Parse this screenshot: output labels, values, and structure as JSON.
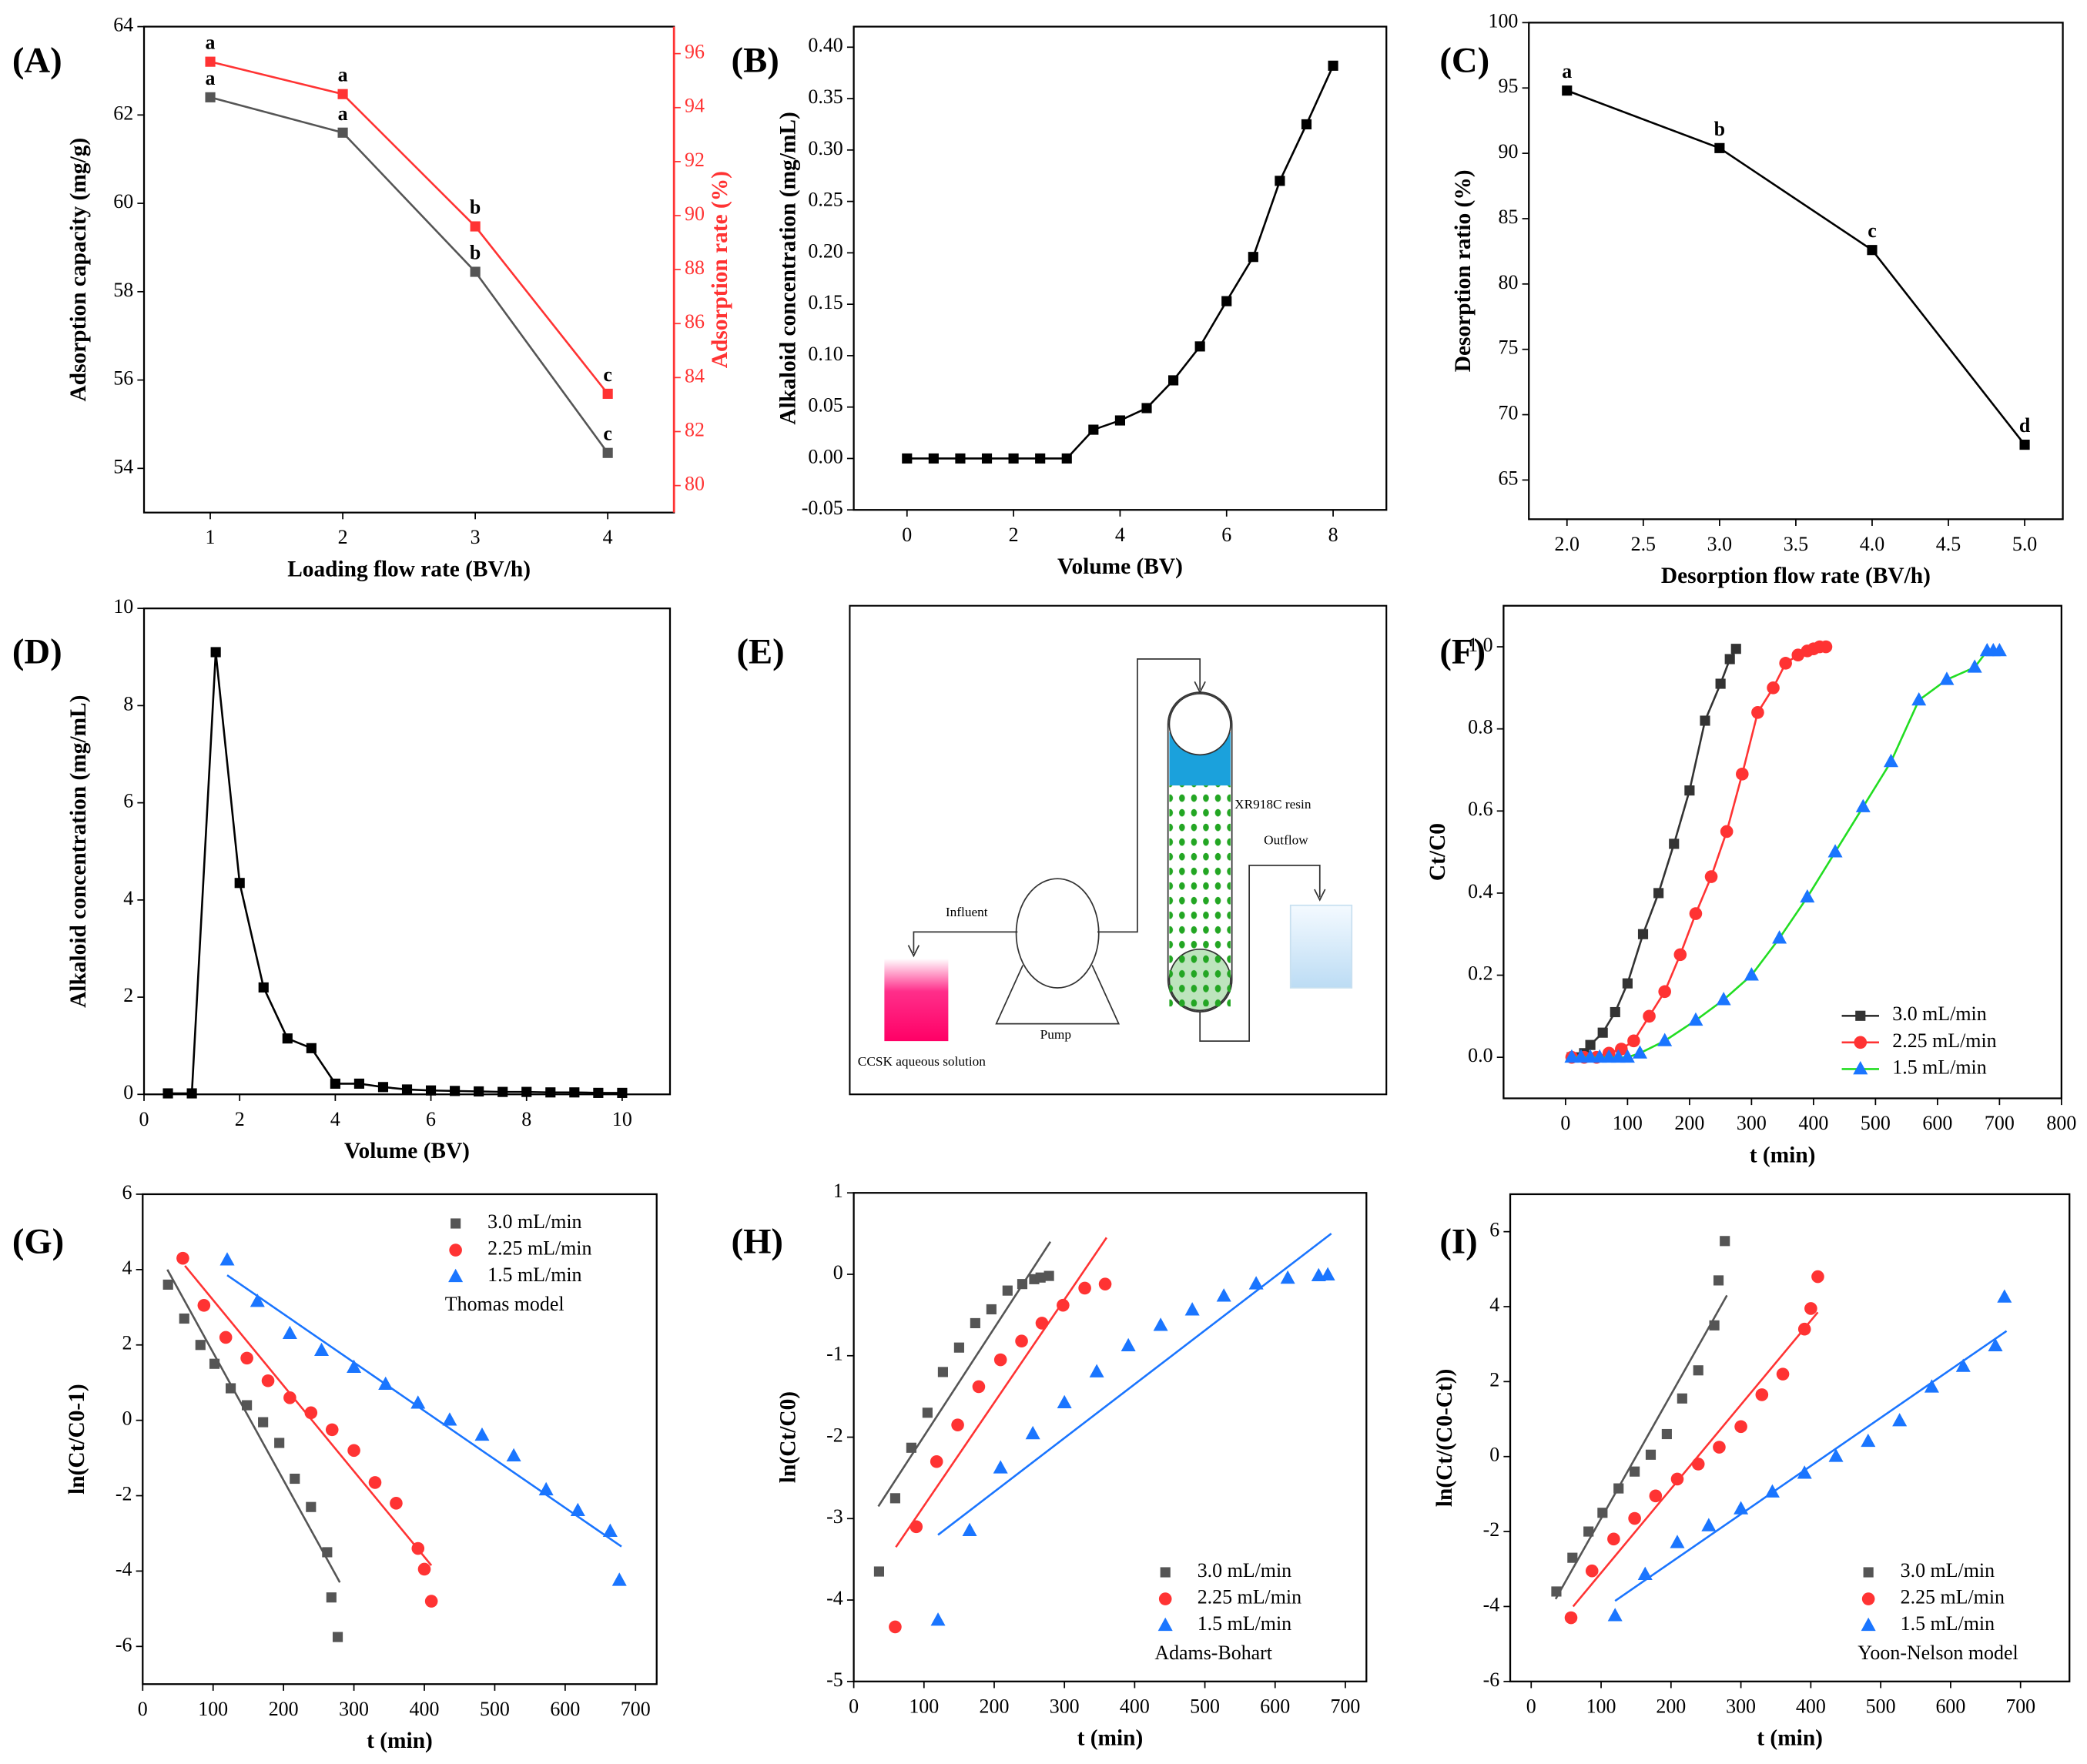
{
  "chart_data": [
    {
      "type": "line",
      "panel": "(A)",
      "xlabel": "Loading flow rate (BV/h)",
      "ylabel": "Adsorption capacity (mg/g)",
      "y2label": "Adsorption rate (%)",
      "x": [
        1,
        2,
        3,
        4
      ],
      "xlim": [
        0.5,
        4.5
      ],
      "xticks": [
        1,
        2,
        3,
        4
      ],
      "ylim": [
        53,
        64
      ],
      "yticks": [
        54,
        56,
        58,
        60,
        62,
        64
      ],
      "y2lim": [
        79,
        97
      ],
      "y2ticks": [
        80,
        82,
        84,
        86,
        88,
        90,
        92,
        94,
        96
      ],
      "series": [
        {
          "name": "Adsorption capacity",
          "color": "#555555",
          "marker": "square",
          "values": [
            62.4,
            61.6,
            58.45,
            54.35
          ],
          "letters": [
            "a",
            "a",
            "b",
            "c"
          ]
        },
        {
          "name": "Adsorption rate",
          "color": "#ff3333",
          "marker": "square",
          "axis": "y2",
          "values": [
            95.7,
            94.5,
            89.6,
            83.4
          ],
          "letters": [
            "a",
            "a",
            "b",
            "c"
          ]
        }
      ]
    },
    {
      "type": "line",
      "panel": "(B)",
      "xlabel": "Volume (BV)",
      "ylabel": "Alkaloid concentration (mg/mL)",
      "x": [
        0,
        0.5,
        1,
        1.5,
        2,
        2.5,
        3,
        3.5,
        4,
        4.5,
        5,
        5.5,
        6,
        6.5,
        7,
        7.5,
        8
      ],
      "xlim": [
        -1,
        9
      ],
      "xticks": [
        0,
        2,
        4,
        6,
        8
      ],
      "ylim": [
        -0.05,
        0.42
      ],
      "yticks": [
        -0.05,
        {
          "value": 0,
          "label": "0.00"
        },
        0.05,
        {
          "value": 0.1,
          "label": "0.10"
        },
        0.15,
        {
          "value": 0.2,
          "label": "0.20"
        },
        0.25,
        {
          "value": 0.3,
          "label": "0.30"
        },
        0.35,
        {
          "value": 0.4,
          "label": "0.40"
        }
      ],
      "series": [
        {
          "name": "Alkaloid concentration",
          "color": "#000000",
          "marker": "square",
          "values": [
            0,
            0,
            0,
            0,
            0,
            0,
            0,
            0.028,
            0.037,
            0.049,
            0.076,
            0.109,
            0.153,
            0.196,
            0.27,
            0.325,
            0.382
          ]
        }
      ]
    },
    {
      "type": "line",
      "panel": "(C)",
      "xlabel": "Desorption flow rate (BV/h)",
      "ylabel": "Desorption ratio (%)",
      "x": [
        2,
        3,
        4,
        5
      ],
      "xlim": [
        1.75,
        5.25
      ],
      "xticks": [
        {
          "value": 2,
          "label": "2.0"
        },
        2.5,
        {
          "value": 3,
          "label": "3.0"
        },
        3.5,
        {
          "value": 4,
          "label": "4.0"
        },
        4.5,
        {
          "value": 5,
          "label": "5.0"
        }
      ],
      "ylim": [
        62,
        100
      ],
      "yticks": [
        65,
        70,
        75,
        80,
        85,
        90,
        95,
        100
      ],
      "series": [
        {
          "name": "Desorption ratio",
          "color": "#000000",
          "marker": "square",
          "values": [
            94.8,
            90.4,
            82.6,
            67.7
          ],
          "letters": [
            "a",
            "b",
            "c",
            "d"
          ]
        }
      ]
    },
    {
      "type": "line",
      "panel": "(D)",
      "xlabel": "Volume (BV)",
      "ylabel": "Alkaloid concentration (mg/mL)",
      "x": [
        0.5,
        1,
        1.5,
        2,
        2.5,
        3,
        3.5,
        4,
        4.5,
        5,
        5.5,
        6,
        6.5,
        7,
        7.5,
        8,
        8.5,
        9,
        9.5,
        10
      ],
      "xlim": [
        0,
        11
      ],
      "xticks": [
        0,
        2,
        4,
        6,
        8,
        10
      ],
      "ylim": [
        0,
        10
      ],
      "yticks": [
        0,
        2,
        4,
        6,
        8,
        10
      ],
      "series": [
        {
          "name": "Alkaloid concentration",
          "color": "#000000",
          "marker": "square",
          "values": [
            0.02,
            0.02,
            9.1,
            4.35,
            2.2,
            1.15,
            0.95,
            0.22,
            0.22,
            0.15,
            0.1,
            0.08,
            0.07,
            0.06,
            0.05,
            0.05,
            0.04,
            0.04,
            0.03,
            0.03
          ]
        }
      ]
    },
    {
      "type": "line",
      "panel": "(F)",
      "xlabel": "t (min)",
      "ylabel": "Ct/C0",
      "legend": "lower right",
      "xlim": [
        -100,
        800
      ],
      "xticks": [
        0,
        100,
        200,
        300,
        400,
        500,
        600,
        700,
        800
      ],
      "ylim": [
        -0.1,
        1.1
      ],
      "yticks": [
        {
          "value": 0,
          "label": "0.0"
        },
        0.2,
        0.4,
        0.6,
        0.8,
        {
          "value": 1,
          "label": "1.0"
        }
      ],
      "series": [
        {
          "name": "3.0 mL/min",
          "color": "#333333",
          "line_color": "#333333",
          "marker": "square",
          "x": [
            10,
            20,
            30,
            40,
            60,
            80,
            100,
            125,
            150,
            175,
            200,
            225,
            250,
            265,
            275
          ],
          "values": [
            0,
            0,
            0.01,
            0.03,
            0.06,
            0.11,
            0.18,
            0.3,
            0.4,
            0.52,
            0.65,
            0.82,
            0.91,
            0.97,
            0.995
          ]
        },
        {
          "name": "2.25 mL/min",
          "color": "#ff3333",
          "line_color": "#ff3333",
          "marker": "circle",
          "x": [
            10,
            30,
            50,
            70,
            90,
            110,
            135,
            160,
            185,
            210,
            235,
            260,
            285,
            310,
            335,
            355,
            375,
            390,
            400,
            410,
            420
          ],
          "values": [
            0,
            0,
            0,
            0.01,
            0.02,
            0.04,
            0.1,
            0.16,
            0.25,
            0.35,
            0.44,
            0.55,
            0.69,
            0.84,
            0.9,
            0.96,
            0.98,
            0.99,
            0.995,
            1.0,
            1.0
          ]
        },
        {
          "name": "1.5 mL/min",
          "color": "#1a75ff",
          "line_color": "#22dd22",
          "marker": "triangle",
          "x": [
            10,
            25,
            40,
            55,
            70,
            85,
            100,
            120,
            160,
            210,
            255,
            300,
            345,
            390,
            435,
            480,
            525,
            570,
            615,
            660,
            680,
            690,
            700
          ],
          "values": [
            0,
            0,
            0,
            0,
            0,
            0,
            0,
            0.01,
            0.04,
            0.09,
            0.14,
            0.2,
            0.29,
            0.39,
            0.5,
            0.61,
            0.72,
            0.87,
            0.92,
            0.95,
            0.99,
            0.99,
            0.99
          ]
        }
      ]
    },
    {
      "type": "scatter",
      "panel": "(G)",
      "xlabel": "t (min)",
      "ylabel": "ln(Ct/C0-1)",
      "legend": "upper right",
      "model_label": "Thomas model",
      "xlim": [
        0,
        730
      ],
      "xticks": [
        0,
        100,
        200,
        300,
        400,
        500,
        600,
        700
      ],
      "ylim": [
        -7,
        6
      ],
      "yticks": [
        -6,
        -4,
        -2,
        0,
        2,
        4,
        6
      ],
      "series": [
        {
          "name": "3.0 mL/min",
          "color": "#555555",
          "marker": "square",
          "x": [
            36,
            59,
            82,
            102,
            125,
            148,
            171,
            194,
            216,
            239,
            262,
            268,
            277
          ],
          "values": [
            3.6,
            2.7,
            2.0,
            1.5,
            0.85,
            0.4,
            -0.05,
            -0.6,
            -1.55,
            -2.3,
            -3.5,
            -4.7,
            -5.75
          ],
          "fit": {
            "x": [
              35,
              280
            ],
            "values": [
              4.0,
              -4.3
            ]
          }
        },
        {
          "name": "2.25 mL/min",
          "color": "#ff3333",
          "marker": "circle",
          "x": [
            57,
            87,
            118,
            148,
            178,
            209,
            239,
            269,
            300,
            330,
            360,
            391,
            400,
            410
          ],
          "values": [
            4.3,
            3.05,
            2.2,
            1.65,
            1.05,
            0.6,
            0.2,
            -0.25,
            -0.8,
            -1.65,
            -2.2,
            -3.4,
            -3.95,
            -4.8
          ],
          "fit": {
            "x": [
              60,
              410
            ],
            "values": [
              4.1,
              -3.85
            ]
          }
        },
        {
          "name": "1.5 mL/min",
          "color": "#1a75ff",
          "marker": "triangle",
          "x": [
            120,
            163,
            209,
            254,
            300,
            345,
            391,
            436,
            482,
            527,
            573,
            618,
            664,
            677
          ],
          "values": [
            4.25,
            3.15,
            2.3,
            1.85,
            1.4,
            0.95,
            0.45,
            0.0,
            -0.4,
            -0.95,
            -1.85,
            -2.4,
            -2.95,
            -4.25
          ],
          "fit": {
            "x": [
              120,
              680
            ],
            "values": [
              3.85,
              -3.35
            ]
          }
        }
      ]
    },
    {
      "type": "scatter",
      "panel": "(H)",
      "xlabel": "t (min)",
      "ylabel": "ln(Ct/C0)",
      "legend": "lower right",
      "model_label": "Adams-Bohart",
      "xlim": [
        0,
        730
      ],
      "xticks": [
        0,
        100,
        200,
        300,
        400,
        500,
        600,
        700
      ],
      "ylim": [
        -5,
        1
      ],
      "yticks": [
        -5,
        -4,
        -3,
        -2,
        -1,
        0,
        1
      ],
      "series": [
        {
          "name": "3.0 mL/min",
          "color": "#555555",
          "marker": "square",
          "x": [
            36,
            59,
            82,
            105,
            127,
            150,
            173,
            196,
            219,
            240,
            257,
            266,
            278
          ],
          "values": [
            -3.65,
            -2.75,
            -2.13,
            -1.7,
            -1.2,
            -0.9,
            -0.6,
            -0.43,
            -0.2,
            -0.12,
            -0.06,
            -0.04,
            -0.02
          ],
          "fit": {
            "x": [
              35,
              280
            ],
            "values": [
              -2.85,
              0.4
            ]
          }
        },
        {
          "name": "2.25 mL/min",
          "color": "#ff3333",
          "marker": "circle",
          "x": [
            59,
            89,
            118,
            148,
            178,
            209,
            239,
            268,
            298,
            329,
            358
          ],
          "values": [
            -4.33,
            -3.1,
            -2.3,
            -1.85,
            -1.38,
            -1.05,
            -0.82,
            -0.6,
            -0.38,
            -0.17,
            -0.12
          ],
          "fit": {
            "x": [
              60,
              360
            ],
            "values": [
              -3.35,
              0.45
            ]
          }
        },
        {
          "name": "1.5 mL/min",
          "color": "#1a75ff",
          "marker": "triangle",
          "x": [
            120,
            165,
            209,
            255,
            300,
            346,
            391,
            437,
            482,
            527,
            573,
            618,
            662,
            675
          ],
          "values": [
            -4.25,
            -3.15,
            -2.38,
            -1.96,
            -1.58,
            -1.2,
            -0.88,
            -0.63,
            -0.44,
            -0.27,
            -0.12,
            -0.05,
            -0.02,
            -0.01
          ],
          "fit": {
            "x": [
              120,
              680
            ],
            "values": [
              -3.2,
              0.5
            ]
          }
        }
      ]
    },
    {
      "type": "scatter",
      "panel": "(I)",
      "xlabel": "t (min)",
      "ylabel": "ln(Ct/(C0-Ct))",
      "legend": "lower right",
      "model_label": "Yoon-Nelson model",
      "xlim": [
        -30,
        770
      ],
      "xticks": [
        0,
        100,
        200,
        300,
        400,
        500,
        600,
        700
      ],
      "ylim": [
        -6,
        7
      ],
      "yticks": [
        -6,
        -4,
        -2,
        0,
        2,
        4,
        6
      ],
      "series": [
        {
          "name": "3.0 mL/min",
          "color": "#555555",
          "marker": "square",
          "x": [
            36,
            59,
            82,
            102,
            125,
            148,
            171,
            194,
            216,
            239,
            262,
            268,
            277
          ],
          "values": [
            -3.6,
            -2.7,
            -2.0,
            -1.5,
            -0.85,
            -0.4,
            0.05,
            0.6,
            1.55,
            2.3,
            3.5,
            4.7,
            5.75
          ],
          "fit": {
            "x": [
              35,
              280
            ],
            "values": [
              -3.8,
              4.3
            ]
          }
        },
        {
          "name": "2.25 mL/min",
          "color": "#ff3333",
          "marker": "circle",
          "x": [
            57,
            87,
            118,
            148,
            178,
            209,
            239,
            269,
            300,
            330,
            360,
            391,
            400,
            410
          ],
          "values": [
            -4.3,
            -3.05,
            -2.2,
            -1.65,
            -1.05,
            -0.6,
            -0.2,
            0.25,
            0.8,
            1.65,
            2.2,
            3.4,
            3.95,
            4.8
          ],
          "fit": {
            "x": [
              60,
              410
            ],
            "values": [
              -4.0,
              3.85
            ]
          }
        },
        {
          "name": "1.5 mL/min",
          "color": "#1a75ff",
          "marker": "triangle",
          "x": [
            120,
            163,
            209,
            254,
            300,
            345,
            391,
            436,
            482,
            527,
            573,
            618,
            664,
            677
          ],
          "values": [
            -4.25,
            -3.15,
            -2.3,
            -1.85,
            -1.4,
            -0.95,
            -0.45,
            0.0,
            0.4,
            0.95,
            1.85,
            2.4,
            2.95,
            4.25
          ],
          "fit": {
            "x": [
              120,
              680
            ],
            "values": [
              -3.85,
              3.35
            ]
          }
        }
      ]
    }
  ],
  "diagram": {
    "panel": "(E)",
    "labels": [
      "XR918C resin",
      "Outflow",
      "Influent",
      "Pump",
      "CCSK aqueous solution"
    ]
  }
}
